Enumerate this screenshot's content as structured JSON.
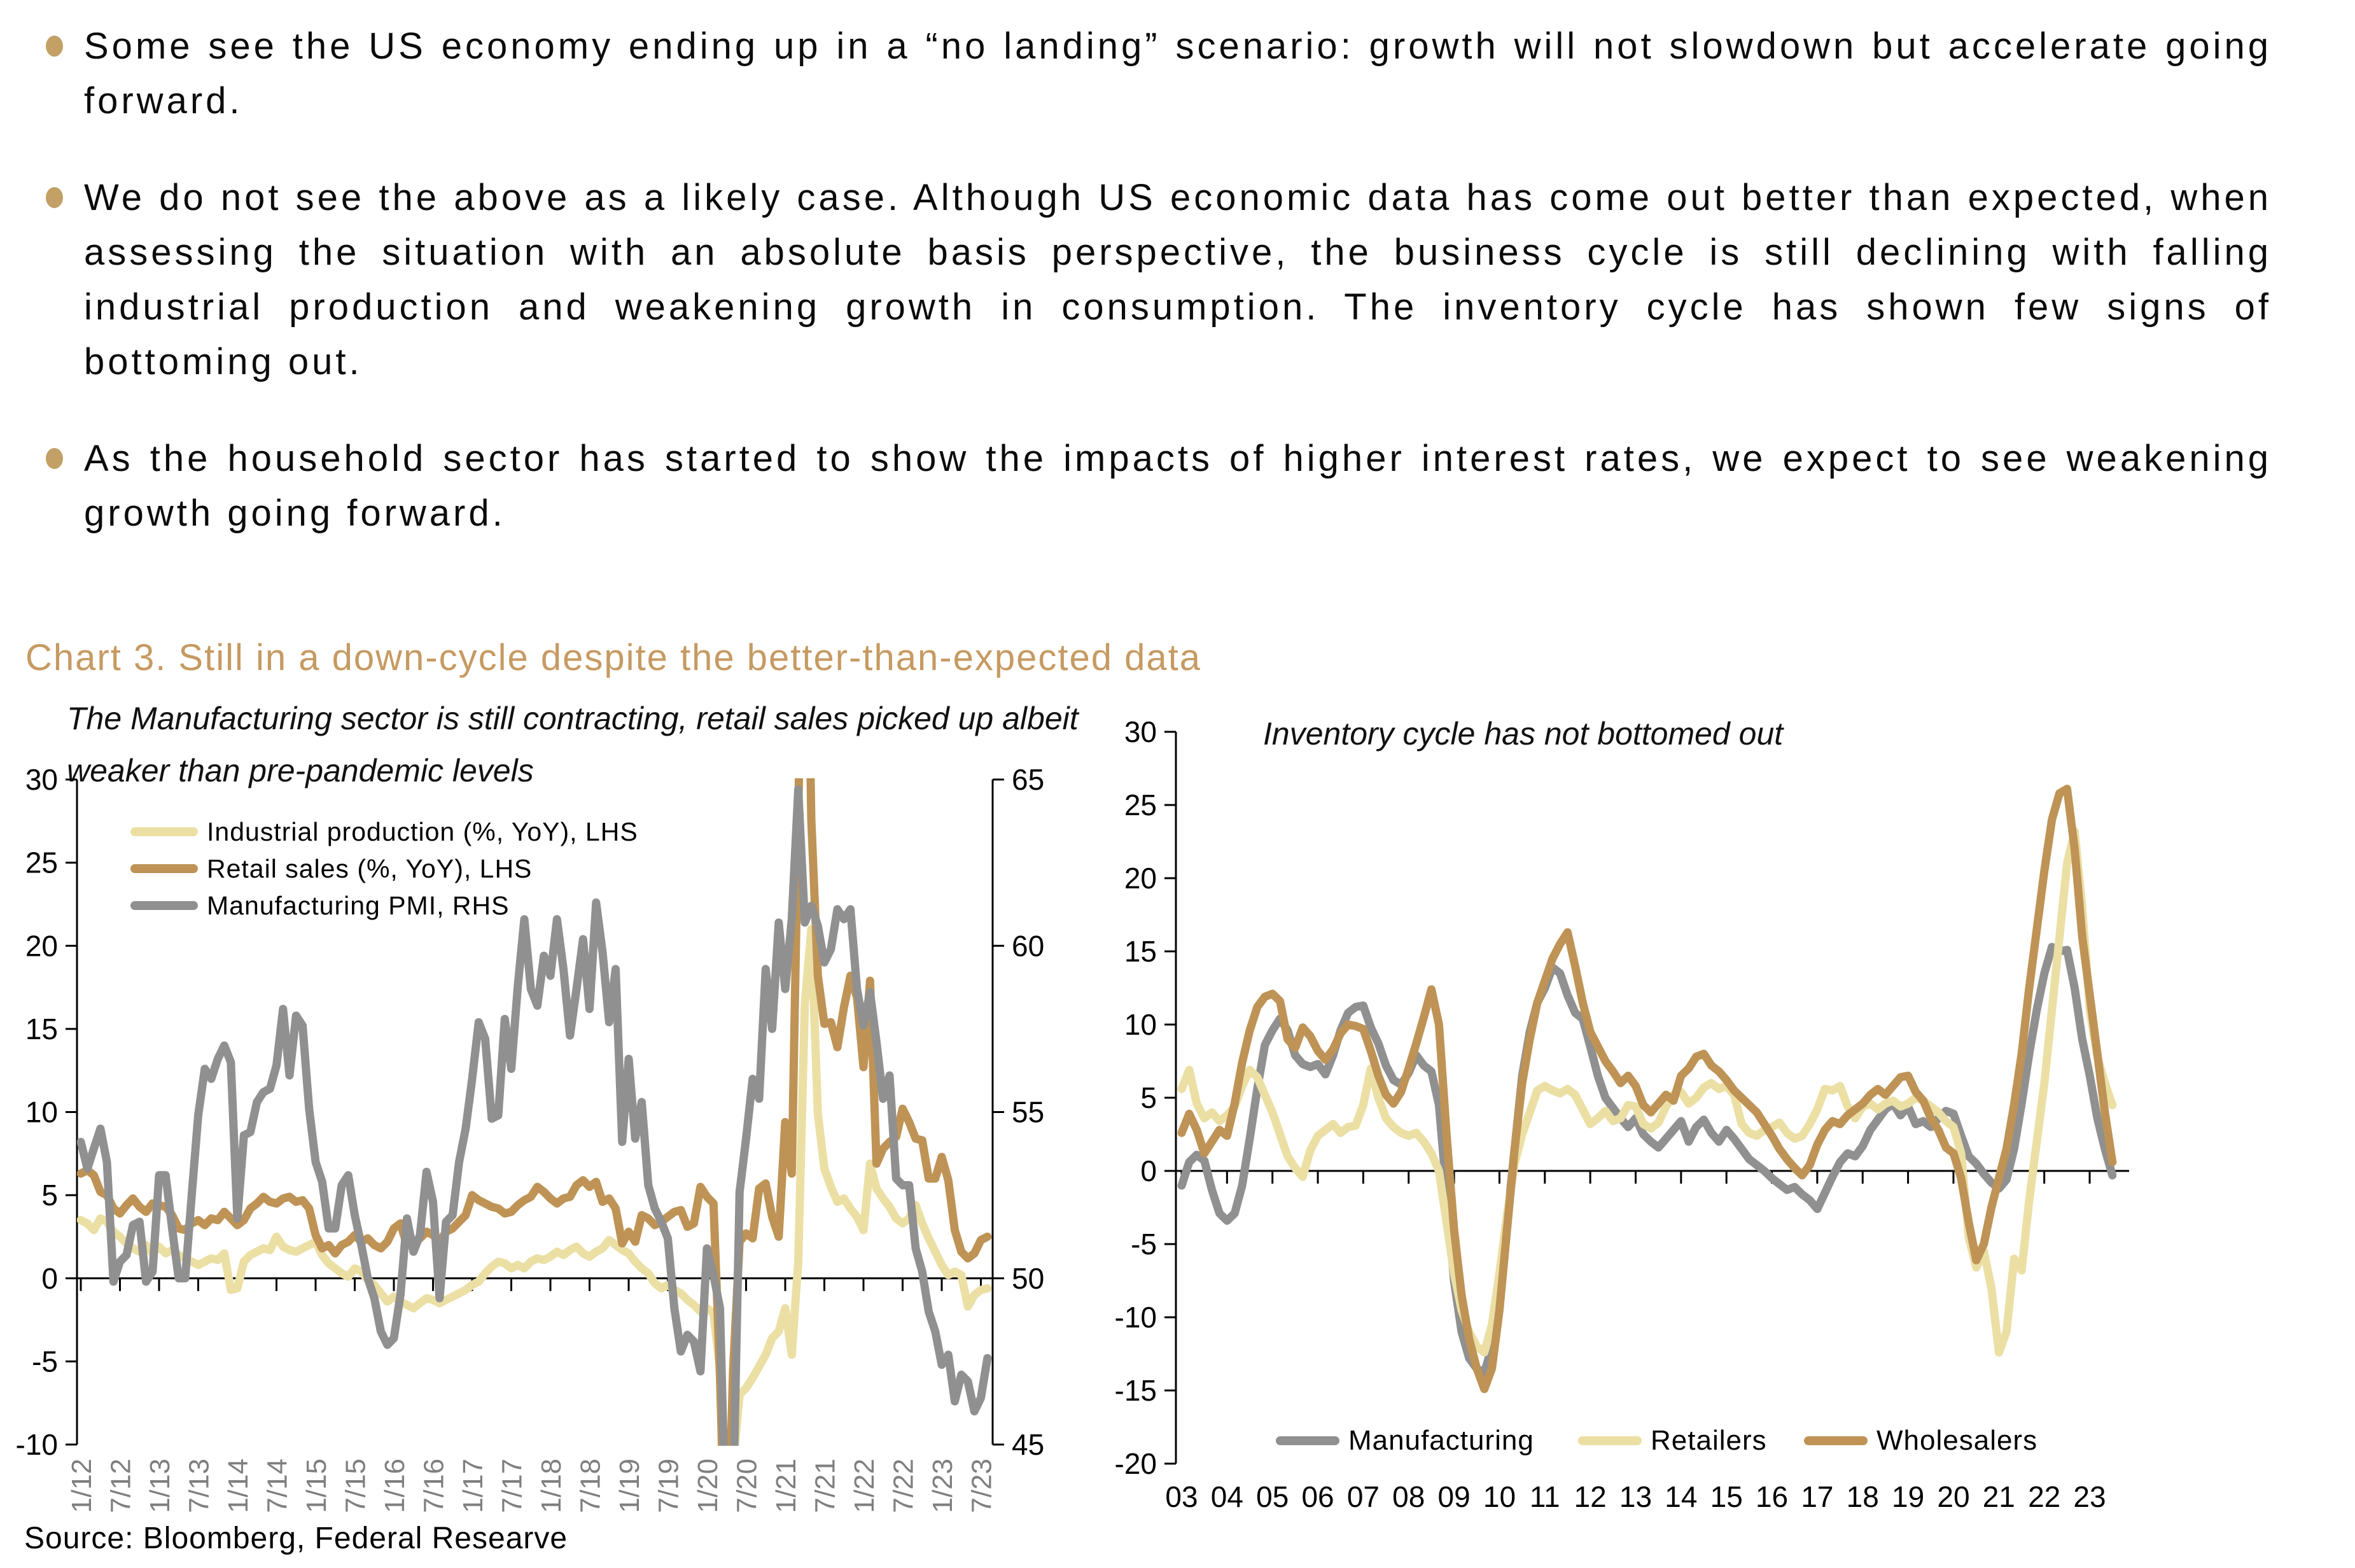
{
  "page": {
    "background": "#FFFFFF",
    "accent_tan": "#C69A62"
  },
  "bullet_color": "#C2A066",
  "bullets": [
    {
      "text": "Some see the US economy ending up in a “no landing” scenario: growth will not slowdown but accelerate going forward."
    },
    {
      "text": "We do not see the above as a likely case. Although US economic data has come out better than expected, when assessing the situation with an absolute basis perspective, the business cycle is still declining with falling industrial production and weakening growth in consumption. The inventory cycle has shown few signs of bottoming out."
    },
    {
      "text": "As the household sector has started to show the impacts of higher interest rates, we expect to see weakening growth going forward."
    }
  ],
  "chart_section": {
    "title": "Chart 3. Still in a down-cycle despite the better-than-expected data",
    "title_color": "#C69A62",
    "source": "Source: Bloomberg, Federal Researve"
  },
  "chart_data": [
    {
      "type": "line",
      "title": "The Manufacturing sector is still contracting, retail sales picked up albeit weaker than pre-pandemic levels",
      "x_frequency": "monthly",
      "x_range": [
        "1/12",
        "8/23"
      ],
      "x_tick_labels": [
        "1/12",
        "7/12",
        "1/13",
        "7/13",
        "1/14",
        "7/14",
        "1/15",
        "7/15",
        "1/16",
        "7/16",
        "1/17",
        "7/17",
        "1/18",
        "7/18",
        "1/19",
        "7/19",
        "1/20",
        "7/20",
        "1/21",
        "7/21",
        "1/22",
        "7/22",
        "1/23",
        "7/23"
      ],
      "x_tick_color": "#7F7F7F",
      "lhs_axis": {
        "min": -10,
        "max": 30,
        "ticks": [
          "30",
          "25",
          "20",
          "15",
          "10",
          "5",
          "0",
          "-5",
          "-10"
        ]
      },
      "rhs_axis": {
        "min": 45,
        "max": 65,
        "ticks": [
          "65",
          "60",
          "55",
          "50",
          "45"
        ]
      },
      "grid": false,
      "legend_position": "inside-top-left",
      "series": [
        {
          "name": "Industrial production (%, YoY), LHS",
          "axis": "lhs",
          "color": "#EBDFA4",
          "values": [
            3.5,
            3.3,
            2.9,
            3.6,
            3.4,
            2.8,
            2.5,
            2.1,
            1.8,
            1.6,
            2.0,
            1.5,
            1.9,
            1.5,
            1.7,
            1.4,
            1.2,
            1.0,
            0.8,
            1.0,
            1.2,
            1.1,
            1.5,
            -0.7,
            -0.6,
            1.0,
            1.4,
            1.6,
            1.8,
            1.7,
            2.5,
            1.9,
            1.7,
            1.6,
            1.8,
            2.0,
            2.2,
            1.4,
            0.9,
            0.6,
            0.3,
            0.1,
            0.6,
            0.4,
            -0.1,
            -0.4,
            -0.9,
            -1.4,
            -1.1,
            -1.4,
            -1.6,
            -1.8,
            -1.5,
            -1.2,
            -1.3,
            -1.5,
            -1.3,
            -1.1,
            -0.9,
            -0.7,
            -0.4,
            -0.2,
            0.3,
            0.7,
            1.0,
            0.9,
            0.6,
            0.8,
            0.6,
            1.0,
            1.2,
            1.1,
            1.3,
            1.6,
            1.4,
            1.7,
            1.9,
            1.5,
            1.3,
            1.6,
            1.8,
            2.3,
            2.0,
            1.7,
            1.5,
            1.0,
            0.6,
            0.3,
            -0.3,
            -0.6,
            -0.4,
            -0.7,
            -0.9,
            -1.3,
            -1.6,
            -2.0,
            -1.8,
            -2.1,
            -5.5,
            -16.3,
            -11.3,
            -7.0,
            -6.6,
            -6.0,
            -5.3,
            -4.6,
            -3.6,
            -3.2,
            -1.8,
            -4.6,
            1.0,
            16.5,
            21.0,
            9.9,
            6.6,
            5.5,
            4.6,
            4.8,
            4.2,
            3.7,
            2.9,
            6.9,
            5.4,
            4.8,
            4.3,
            3.6,
            3.3,
            3.6,
            4.4,
            3.3,
            2.4,
            1.6,
            0.8,
            0.2,
            0.4,
            0.2,
            -1.7,
            -1.0,
            -0.7,
            -0.6
          ]
        },
        {
          "name": "Retail sales (%, YoY), LHS",
          "axis": "lhs",
          "color": "#BE9355",
          "values": [
            6.3,
            6.5,
            6.2,
            5.2,
            5.0,
            4.2,
            3.9,
            4.4,
            4.8,
            4.3,
            4.0,
            4.5,
            4.4,
            4.3,
            3.8,
            3.0,
            2.9,
            3.3,
            3.5,
            3.2,
            3.6,
            3.5,
            4.0,
            3.6,
            3.2,
            3.5,
            4.2,
            4.5,
            4.9,
            4.6,
            4.5,
            4.8,
            4.9,
            4.6,
            4.7,
            4.2,
            2.6,
            1.8,
            2.0,
            1.5,
            2.0,
            2.2,
            2.6,
            2.2,
            2.4,
            2.0,
            1.8,
            2.2,
            3.0,
            3.3,
            2.0,
            2.2,
            2.4,
            2.8,
            2.6,
            2.2,
            2.8,
            3.0,
            3.4,
            3.8,
            5.0,
            4.7,
            4.5,
            4.3,
            4.2,
            3.9,
            4.0,
            4.4,
            4.7,
            4.9,
            5.5,
            5.2,
            4.8,
            4.5,
            4.8,
            4.9,
            5.6,
            5.9,
            5.5,
            5.8,
            4.6,
            4.8,
            4.2,
            2.1,
            2.8,
            2.2,
            3.8,
            3.6,
            3.2,
            3.4,
            3.7,
            4.0,
            4.1,
            3.1,
            3.3,
            5.5,
            4.9,
            4.5,
            -5.9,
            -19.9,
            -5.6,
            2.2,
            2.7,
            2.4,
            5.4,
            5.7,
            3.7,
            2.5,
            9.4,
            6.3,
            27.7,
            51.2,
            27.6,
            18.2,
            15.3,
            15.4,
            13.9,
            16.3,
            18.2,
            16.9,
            12.7,
            17.9,
            6.9,
            7.8,
            8.2,
            8.5,
            10.2,
            9.4,
            8.4,
            8.3,
            6.0,
            6.0,
            7.3,
            5.9,
            2.9,
            1.6,
            1.2,
            1.5,
            2.3,
            2.5
          ]
        },
        {
          "name": "Manufacturing PMI, RHS",
          "axis": "rhs",
          "color": "#909090",
          "values": [
            54.1,
            53.3,
            53.9,
            54.5,
            53.5,
            49.9,
            50.5,
            50.7,
            51.6,
            51.7,
            49.9,
            50.2,
            53.1,
            53.1,
            51.5,
            50.0,
            50.0,
            52.5,
            54.9,
            56.3,
            56.0,
            56.6,
            57.0,
            56.5,
            51.8,
            54.3,
            54.4,
            55.3,
            55.6,
            55.7,
            56.4,
            58.1,
            56.1,
            57.9,
            57.6,
            55.1,
            53.5,
            52.9,
            51.5,
            51.5,
            52.8,
            53.1,
            51.9,
            51.0,
            50.0,
            49.4,
            48.4,
            48.0,
            48.2,
            49.5,
            51.8,
            50.8,
            51.3,
            53.2,
            52.3,
            49.4,
            51.7,
            51.9,
            53.5,
            54.5,
            56.0,
            57.7,
            57.2,
            54.8,
            54.9,
            57.8,
            56.3,
            58.8,
            60.8,
            58.7,
            58.2,
            59.7,
            59.1,
            60.8,
            59.3,
            57.3,
            58.7,
            60.2,
            58.1,
            61.3,
            59.8,
            57.7,
            59.3,
            54.1,
            56.6,
            54.2,
            55.3,
            52.8,
            52.1,
            51.7,
            51.2,
            49.1,
            47.8,
            48.3,
            48.1,
            47.2,
            50.9,
            50.1,
            49.1,
            41.5,
            43.1,
            52.6,
            54.2,
            56.0,
            55.4,
            59.3,
            57.5,
            60.7,
            58.7,
            60.8,
            64.7,
            60.7,
            61.2,
            60.6,
            59.5,
            59.9,
            61.1,
            60.8,
            61.1,
            58.7,
            57.6,
            58.6,
            57.1,
            55.4,
            56.1,
            53.0,
            52.8,
            52.8,
            50.9,
            50.2,
            49.0,
            48.4,
            47.4,
            47.7,
            46.3,
            47.1,
            46.9,
            46.0,
            46.4,
            47.6
          ]
        }
      ]
    },
    {
      "type": "line",
      "title": "Inventory cycle has not bottomed out",
      "x_frequency": "bimonthly",
      "x_range": [
        "Jan-03",
        "Jul-23"
      ],
      "x_tick_labels": [
        "03",
        "04",
        "05",
        "06",
        "07",
        "08",
        "09",
        "10",
        "11",
        "12",
        "13",
        "14",
        "15",
        "16",
        "17",
        "18",
        "19",
        "20",
        "21",
        "22",
        "23"
      ],
      "x_tick_color": "#000000",
      "lhs_axis": {
        "min": -20,
        "max": 30,
        "ticks": [
          "30",
          "25",
          "20",
          "15",
          "10",
          "5",
          "0",
          "-5",
          "-10",
          "-15",
          "-20"
        ]
      },
      "grid": false,
      "legend_position": "inside-bottom",
      "series": [
        {
          "name": "Manufacturing",
          "axis": "lhs",
          "color": "#909090",
          "values": [
            -1.0,
            0.6,
            1.1,
            0.7,
            -1.3,
            -2.9,
            -3.4,
            -2.9,
            -1.0,
            2.2,
            5.6,
            8.6,
            9.6,
            10.4,
            9.6,
            7.9,
            7.3,
            7.1,
            7.3,
            6.6,
            7.9,
            9.6,
            10.8,
            11.2,
            11.3,
            9.8,
            8.7,
            7.2,
            6.2,
            5.9,
            6.7,
            7.9,
            7.2,
            6.8,
            4.5,
            -1.5,
            -7.5,
            -11.0,
            -12.8,
            -13.5,
            -13.8,
            -12.0,
            -8.5,
            -3.5,
            1.5,
            6.5,
            9.5,
            11.5,
            12.5,
            13.9,
            13.5,
            12.0,
            10.8,
            10.4,
            8.5,
            6.5,
            5.0,
            4.3,
            3.6,
            3.0,
            3.6,
            2.5,
            2.0,
            1.6,
            2.2,
            2.8,
            3.4,
            2.0,
            3.0,
            3.5,
            2.6,
            2.0,
            2.8,
            2.2,
            1.5,
            0.8,
            0.4,
            0.0,
            -0.5,
            -0.9,
            -1.3,
            -1.1,
            -1.6,
            -2.0,
            -2.6,
            -1.5,
            -0.4,
            0.6,
            1.2,
            1.0,
            1.7,
            2.8,
            3.5,
            4.2,
            4.6,
            3.8,
            4.4,
            3.2,
            3.4,
            3.0,
            3.6,
            4.1,
            3.9,
            2.4,
            1.0,
            0.5,
            -0.2,
            -0.8,
            -1.2,
            -0.6,
            1.5,
            4.6,
            8.0,
            11.0,
            13.5,
            15.3,
            15.0,
            15.1,
            12.5,
            9.0,
            6.5,
            3.6,
            1.5,
            -0.3
          ]
        },
        {
          "name": "Retailers",
          "axis": "lhs",
          "color": "#EBDFA4",
          "values": [
            5.6,
            6.9,
            4.6,
            3.6,
            4.0,
            3.4,
            3.8,
            4.4,
            5.8,
            6.9,
            6.4,
            5.2,
            4.0,
            2.5,
            1.0,
            0.2,
            -0.4,
            1.4,
            2.4,
            2.8,
            3.2,
            2.6,
            3.0,
            3.1,
            4.5,
            7.0,
            5.0,
            3.6,
            3.0,
            2.6,
            2.4,
            2.6,
            2.0,
            1.2,
            0.0,
            -3.5,
            -7.0,
            -9.5,
            -11.0,
            -12.0,
            -12.4,
            -10.5,
            -7.0,
            -3.0,
            0.5,
            2.5,
            4.0,
            5.5,
            5.8,
            5.5,
            5.3,
            5.6,
            5.2,
            4.2,
            3.2,
            3.6,
            4.1,
            3.4,
            3.6,
            4.5,
            4.4,
            3.2,
            2.9,
            3.3,
            4.4,
            5.2,
            5.4,
            4.6,
            5.0,
            5.7,
            6.0,
            5.6,
            5.8,
            5.2,
            3.2,
            2.6,
            2.4,
            2.8,
            3.0,
            3.3,
            2.6,
            2.2,
            2.4,
            3.2,
            4.2,
            5.6,
            5.5,
            5.8,
            4.4,
            3.6,
            4.4,
            4.6,
            4.2,
            4.6,
            4.8,
            4.4,
            4.6,
            5.0,
            4.8,
            4.4,
            4.0,
            3.4,
            3.0,
            1.2,
            -4.5,
            -6.6,
            -5.5,
            -8.0,
            -12.4,
            -11.0,
            -6.0,
            -6.8,
            -2.0,
            2.0,
            6.0,
            11.0,
            16.0,
            21.0,
            23.2,
            18.0,
            11.0,
            7.8,
            6.0,
            4.5
          ]
        },
        {
          "name": "Wholesalers",
          "axis": "lhs",
          "color": "#BE9355",
          "values": [
            2.6,
            3.9,
            2.8,
            1.2,
            2.0,
            2.8,
            2.4,
            4.6,
            7.4,
            9.6,
            11.2,
            11.9,
            12.1,
            11.6,
            9.0,
            8.4,
            9.8,
            9.2,
            8.2,
            7.6,
            8.3,
            9.4,
            10.0,
            9.9,
            9.7,
            8.2,
            6.5,
            5.2,
            4.6,
            5.4,
            7.0,
            8.7,
            10.5,
            12.4,
            10.0,
            2.5,
            -4.0,
            -8.5,
            -11.5,
            -13.5,
            -14.9,
            -13.5,
            -9.5,
            -4.0,
            1.5,
            6.0,
            9.0,
            11.5,
            13.0,
            14.5,
            15.5,
            16.3,
            14.0,
            11.5,
            9.5,
            8.5,
            7.5,
            6.8,
            6.0,
            6.5,
            5.8,
            4.5,
            4.0,
            4.6,
            5.2,
            4.8,
            6.5,
            7.0,
            7.8,
            8.0,
            7.2,
            6.8,
            6.2,
            5.5,
            5.0,
            4.5,
            4.0,
            3.2,
            2.4,
            1.5,
            0.8,
            0.2,
            -0.3,
            0.4,
            1.8,
            2.8,
            3.4,
            3.2,
            3.8,
            4.2,
            4.6,
            5.2,
            5.6,
            5.2,
            5.8,
            6.4,
            6.5,
            5.4,
            4.8,
            3.6,
            2.8,
            1.6,
            1.2,
            -0.5,
            -3.5,
            -6.1,
            -5.0,
            -2.5,
            -0.5,
            1.5,
            4.5,
            8.0,
            12.5,
            16.5,
            20.5,
            24.0,
            25.8,
            26.1,
            22.0,
            16.0,
            12.0,
            8.0,
            4.0,
            0.6
          ]
        }
      ]
    }
  ]
}
